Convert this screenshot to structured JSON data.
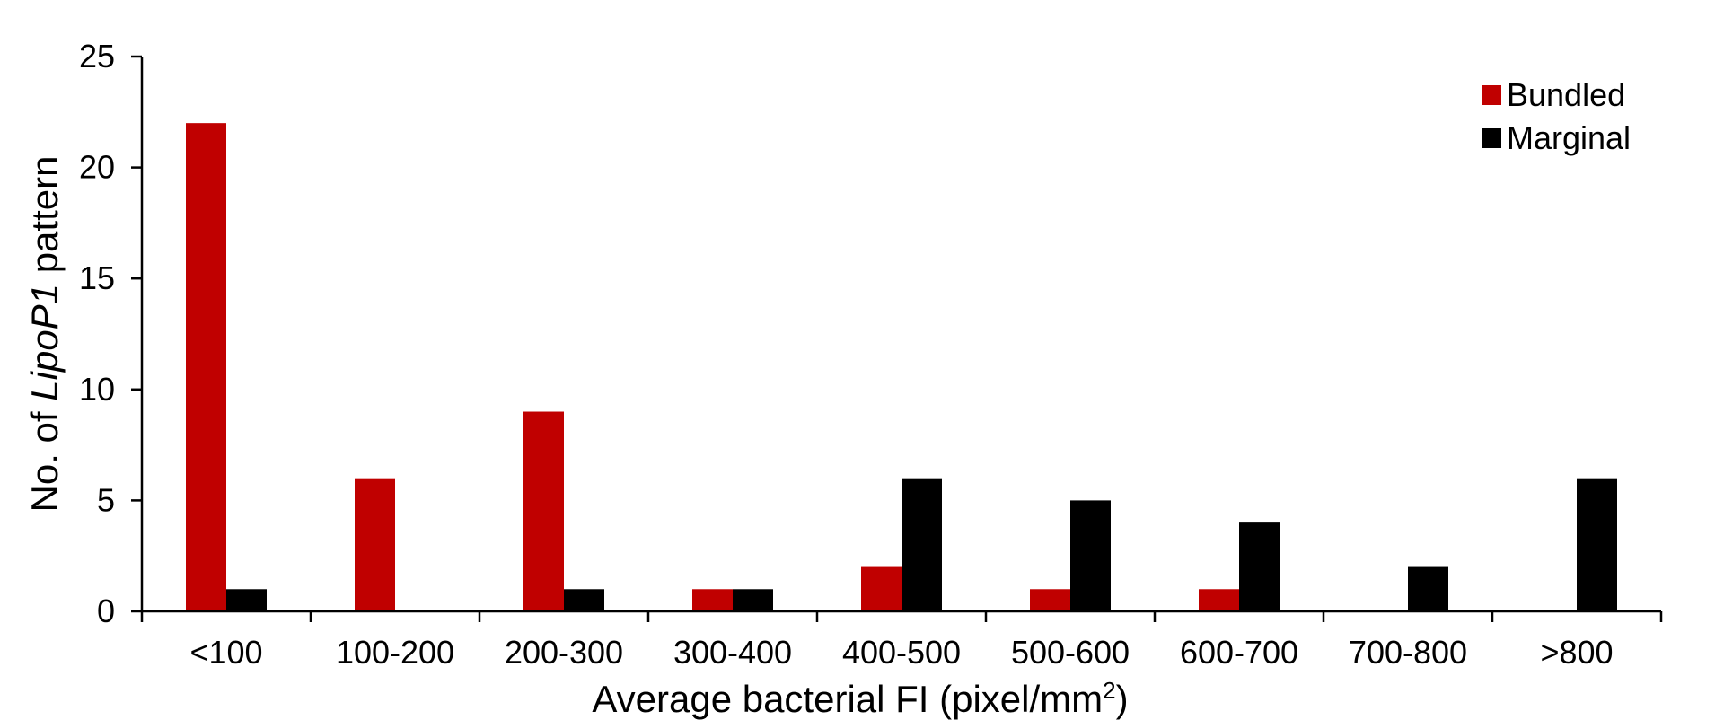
{
  "chart_data": {
    "type": "bar",
    "xlabel_prefix": "Average bacterial FI (pixel/mm",
    "xlabel_sup": "2",
    "xlabel_suffix": ")",
    "ylabel_part1": "No. of ",
    "ylabel_italic": "LipoP1",
    "ylabel_part2": " pattern",
    "categories": [
      "<100",
      "100-200",
      "200-300",
      "300-400",
      "400-500",
      "500-600",
      "600-700",
      "700-800",
      ">800"
    ],
    "series": [
      {
        "name": "Bundled",
        "color": "#c00000",
        "values": [
          22,
          6,
          9,
          1,
          2,
          1,
          1,
          0,
          0
        ]
      },
      {
        "name": "Marginal",
        "color": "#000000",
        "values": [
          1,
          0,
          1,
          1,
          6,
          5,
          4,
          2,
          6
        ]
      }
    ],
    "ylim": [
      0,
      25
    ],
    "yticks": [
      0,
      5,
      10,
      15,
      20,
      25
    ],
    "grid": false,
    "legend_position": "top-right"
  }
}
